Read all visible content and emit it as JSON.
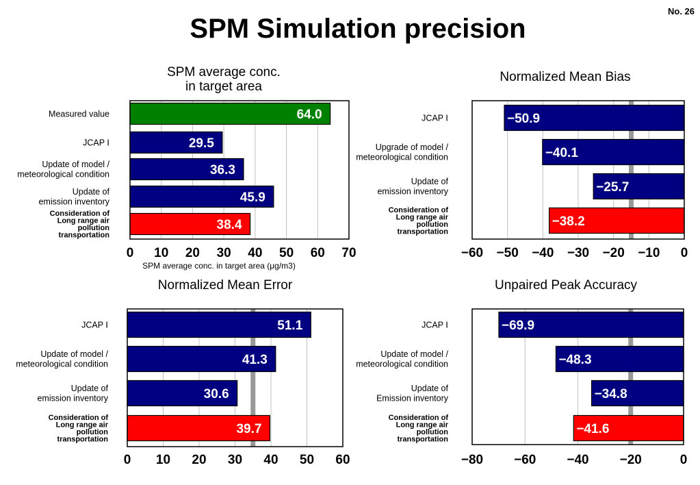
{
  "page": {
    "number": "No. 26",
    "title": "SPM Simulation precision"
  },
  "colors": {
    "navy": "#000080",
    "green": "#008000",
    "red": "#ff0000",
    "reference_band": "#999999",
    "grid": "#c0c0c0"
  },
  "chart_data": [
    {
      "type": "bar",
      "orientation": "horizontal",
      "title": "SPM average conc.\nin target area",
      "xlabel": "SPM average conc. in target area (μg/m3)",
      "xlim": [
        0,
        70
      ],
      "xticks": [
        "0",
        "10",
        "20",
        "30",
        "40",
        "50",
        "60",
        "70"
      ],
      "grid": true,
      "categories": [
        {
          "label": "Measured value",
          "bold": false
        },
        {
          "label": "JCAP Ⅰ",
          "bold": false
        },
        {
          "label": "Update of model /\nmeteorological condition",
          "bold": false
        },
        {
          "label": "Update of\nemission inventory",
          "bold": false
        },
        {
          "label": "Consideration of\nLong range air\npollution\ntransportation",
          "bold": true
        }
      ],
      "values": [
        64.0,
        29.5,
        36.3,
        45.9,
        38.4
      ],
      "value_labels": [
        "64.0",
        "29.5",
        "36.3",
        "45.9",
        "38.4"
      ],
      "bar_colors": [
        "#008000",
        "#000080",
        "#000080",
        "#000080",
        "#ff0000"
      ]
    },
    {
      "type": "bar",
      "orientation": "horizontal",
      "title": "Normalized Mean Bias",
      "xlabel": "",
      "xlim": [
        -60,
        0
      ],
      "xticks": [
        "−60",
        "−50",
        "−40",
        "−30",
        "−20",
        "−10",
        "0"
      ],
      "grid": true,
      "reference_line": -15,
      "categories": [
        {
          "label": "JCAP Ⅰ",
          "bold": false
        },
        {
          "label": "Upgrade of model /\nmeteorological condition",
          "bold": false
        },
        {
          "label": "Update of\nemission inventory",
          "bold": false
        },
        {
          "label": "Consideration of\nLong range air\npollution\ntransportation",
          "bold": true
        }
      ],
      "values": [
        -50.9,
        -40.1,
        -25.7,
        -38.2
      ],
      "value_labels": [
        "−50.9",
        "−40.1",
        "−25.7",
        "−38.2"
      ],
      "bar_colors": [
        "#000080",
        "#000080",
        "#000080",
        "#ff0000"
      ]
    },
    {
      "type": "bar",
      "orientation": "horizontal",
      "title": "Normalized Mean Error",
      "xlabel": "",
      "xlim": [
        0,
        60
      ],
      "xticks": [
        "0",
        "10",
        "20",
        "30",
        "40",
        "50",
        "60"
      ],
      "grid": true,
      "reference_line": 35,
      "categories": [
        {
          "label": "JCAP Ⅰ",
          "bold": false
        },
        {
          "label": "Update of model /\nmeteorological condition",
          "bold": false
        },
        {
          "label": "Update of\nemission inventory",
          "bold": false
        },
        {
          "label": "Consideration of\nLong range air\npollution\ntransportation",
          "bold": true
        }
      ],
      "values": [
        51.1,
        41.3,
        30.6,
        39.7
      ],
      "value_labels": [
        "51.1",
        "41.3",
        "30.6",
        "39.7"
      ],
      "bar_colors": [
        "#000080",
        "#000080",
        "#000080",
        "#ff0000"
      ]
    },
    {
      "type": "bar",
      "orientation": "horizontal",
      "title": "Unpaired Peak Accuracy",
      "xlabel": "",
      "xlim": [
        -80,
        0
      ],
      "xticks": [
        "−80",
        "−60",
        "−40",
        "−20",
        "0"
      ],
      "grid": true,
      "reference_line": -20,
      "categories": [
        {
          "label": "JCAP Ⅰ",
          "bold": false
        },
        {
          "label": "Update of model /\nmeteorological condition",
          "bold": false
        },
        {
          "label": "Update of\nEmission inventory",
          "bold": false
        },
        {
          "label": "Consideration of\nLong range air\npollution\ntransportation",
          "bold": true
        }
      ],
      "values": [
        -69.9,
        -48.3,
        -34.8,
        -41.6
      ],
      "value_labels": [
        "−69.9",
        "−48.3",
        "−34.8",
        "−41.6"
      ],
      "bar_colors": [
        "#000080",
        "#000080",
        "#000080",
        "#ff0000"
      ]
    }
  ]
}
